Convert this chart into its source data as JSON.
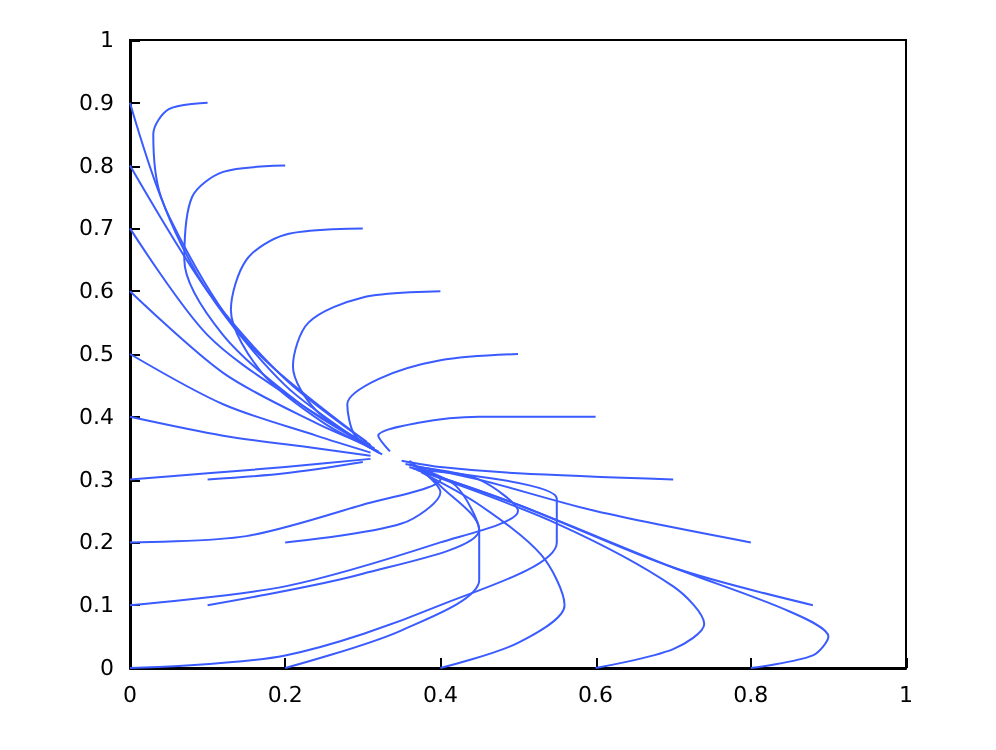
{
  "chart_data": {
    "type": "line",
    "xlim": [
      0,
      1
    ],
    "ylim": [
      0,
      1
    ],
    "xticks": [
      0,
      0.2,
      0.4,
      0.6,
      0.8,
      1
    ],
    "yticks": [
      0,
      0.1,
      0.2,
      0.3,
      0.4,
      0.5,
      0.6,
      0.7,
      0.8,
      0.9,
      1
    ],
    "grid": false,
    "marker": "none",
    "line_style": "solid",
    "series": [
      {
        "color": "#3a5bff",
        "x": [
          0.1,
          0.05,
          0.03,
          0.04,
          0.1,
          0.2,
          0.31
        ],
        "values": [
          0.9,
          0.89,
          0.85,
          0.75,
          0.6,
          0.45,
          0.35
        ]
      },
      {
        "color": "#3a5bff",
        "x": [
          0.2,
          0.12,
          0.08,
          0.07,
          0.12,
          0.22,
          0.315
        ],
        "values": [
          0.8,
          0.79,
          0.75,
          0.65,
          0.53,
          0.42,
          0.348
        ]
      },
      {
        "color": "#3a5bff",
        "x": [
          0.3,
          0.2,
          0.15,
          0.13,
          0.17,
          0.25,
          0.32
        ],
        "values": [
          0.7,
          0.69,
          0.65,
          0.57,
          0.47,
          0.39,
          0.345
        ]
      },
      {
        "color": "#3a5bff",
        "x": [
          0.4,
          0.3,
          0.23,
          0.21,
          0.24,
          0.322
        ],
        "values": [
          0.6,
          0.59,
          0.55,
          0.48,
          0.41,
          0.342
        ]
      },
      {
        "color": "#3a5bff",
        "x": [
          0.5,
          0.4,
          0.32,
          0.28,
          0.29,
          0.325
        ],
        "values": [
          0.5,
          0.49,
          0.46,
          0.42,
          0.37,
          0.34
        ]
      },
      {
        "color": "#3a5bff",
        "x": [
          0.6,
          0.45,
          0.37,
          0.32,
          0.335
        ],
        "values": [
          0.4,
          0.4,
          0.39,
          0.37,
          0.345
        ]
      },
      {
        "color": "#3a5bff",
        "x": [
          0,
          0.05,
          0.15,
          0.305
        ],
        "values": [
          0.9,
          0.72,
          0.52,
          0.36
        ]
      },
      {
        "color": "#3a5bff",
        "x": [
          0,
          0.1,
          0.2,
          0.31
        ],
        "values": [
          0.8,
          0.6,
          0.46,
          0.355
        ]
      },
      {
        "color": "#3a5bff",
        "x": [
          0,
          0.1,
          0.22,
          0.312
        ],
        "values": [
          0.7,
          0.53,
          0.42,
          0.352
        ]
      },
      {
        "color": "#3a5bff",
        "x": [
          0,
          0.12,
          0.24,
          0.315
        ],
        "values": [
          0.6,
          0.47,
          0.39,
          0.35
        ]
      },
      {
        "color": "#3a5bff",
        "x": [
          0,
          0.12,
          0.24,
          0.31
        ],
        "values": [
          0.5,
          0.42,
          0.37,
          0.343
        ]
      },
      {
        "color": "#3a5bff",
        "x": [
          0,
          0.12,
          0.24,
          0.31
        ],
        "values": [
          0.4,
          0.37,
          0.35,
          0.338
        ]
      },
      {
        "color": "#3a5bff",
        "x": [
          0,
          0.1,
          0.2,
          0.31
        ],
        "values": [
          0.3,
          0.31,
          0.32,
          0.333
        ]
      },
      {
        "color": "#3a5bff",
        "x": [
          0,
          0.15,
          0.3,
          0.4,
          0.36
        ],
        "values": [
          0.2,
          0.21,
          0.26,
          0.3,
          0.325
        ]
      },
      {
        "color": "#3a5bff",
        "x": [
          0,
          0.2,
          0.4,
          0.5,
          0.45,
          0.37
        ],
        "values": [
          0.1,
          0.13,
          0.2,
          0.25,
          0.3,
          0.32
        ]
      },
      {
        "color": "#3a5bff",
        "x": [
          0,
          0.2,
          0.4,
          0.55,
          0.55,
          0.38
        ],
        "values": [
          0,
          0.02,
          0.1,
          0.2,
          0.27,
          0.315
        ]
      },
      {
        "color": "#3a5bff",
        "x": [
          0.88,
          0.7,
          0.5,
          0.36
        ],
        "values": [
          0.1,
          0.16,
          0.26,
          0.32
        ]
      },
      {
        "color": "#3a5bff",
        "x": [
          0.8,
          0.6,
          0.45,
          0.355
        ],
        "values": [
          0.2,
          0.25,
          0.3,
          0.325
        ]
      },
      {
        "color": "#3a5bff",
        "x": [
          0.7,
          0.5,
          0.4,
          0.35
        ],
        "values": [
          0.3,
          0.31,
          0.32,
          0.33
        ]
      },
      {
        "color": "#3a5bff",
        "x": [
          0.8,
          0.88,
          0.9,
          0.85,
          0.7,
          0.5,
          0.365
        ],
        "values": [
          0,
          0.02,
          0.05,
          0.09,
          0.16,
          0.26,
          0.318
        ]
      },
      {
        "color": "#3a5bff",
        "x": [
          0.6,
          0.7,
          0.74,
          0.7,
          0.55,
          0.37
        ],
        "values": [
          0,
          0.03,
          0.07,
          0.13,
          0.23,
          0.315
        ]
      },
      {
        "color": "#3a5bff",
        "x": [
          0.4,
          0.5,
          0.56,
          0.53,
          0.45,
          0.375
        ],
        "values": [
          0,
          0.04,
          0.1,
          0.18,
          0.26,
          0.312
        ]
      },
      {
        "color": "#3a5bff",
        "x": [
          0.2,
          0.35,
          0.45,
          0.45,
          0.4,
          0.38
        ],
        "values": [
          0,
          0.06,
          0.14,
          0.22,
          0.29,
          0.31
        ]
      },
      {
        "color": "#3a5bff",
        "x": [
          0.1,
          0.3,
          0.45,
          0.42,
          0.365
        ],
        "values": [
          0.1,
          0.15,
          0.22,
          0.29,
          0.322
        ]
      },
      {
        "color": "#3a5bff",
        "x": [
          0.2,
          0.35,
          0.4,
          0.36
        ],
        "values": [
          0.2,
          0.23,
          0.28,
          0.33
        ]
      },
      {
        "color": "#3a5bff",
        "x": [
          0.1,
          0.2,
          0.3
        ],
        "values": [
          0.3,
          0.31,
          0.328
        ]
      }
    ]
  }
}
